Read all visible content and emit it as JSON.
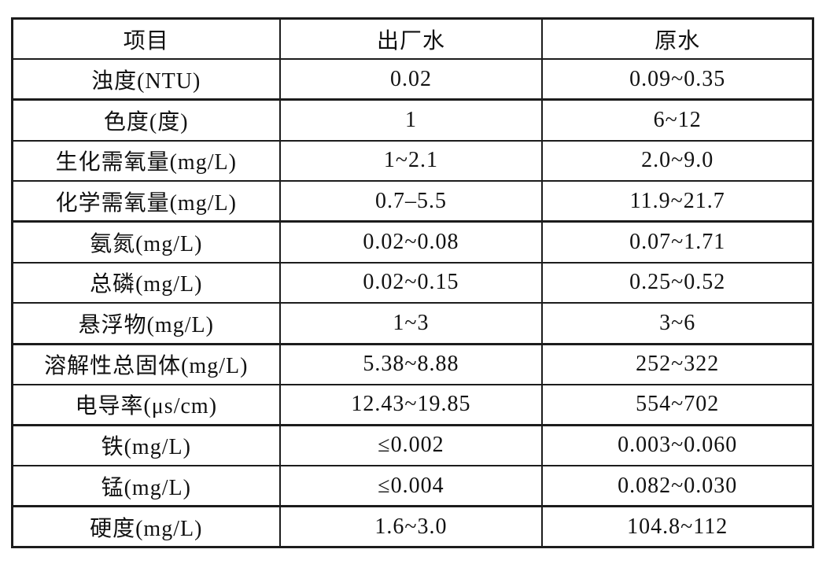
{
  "colors": {
    "background": "#ffffff",
    "border": "#1c1c1c",
    "text": "#111111"
  },
  "table": {
    "headers": [
      "项目",
      "出厂水",
      "原水"
    ],
    "rows": [
      {
        "item": "浊度(NTU)",
        "factory_water": "0.02",
        "raw_water": "0.09~0.35"
      },
      {
        "item": "色度(度)",
        "factory_water": "1",
        "raw_water": "6~12"
      },
      {
        "item": "生化需氧量(mg/L)",
        "factory_water": "1~2.1",
        "raw_water": "2.0~9.0"
      },
      {
        "item": "化学需氧量(mg/L)",
        "factory_water": "0.7–5.5",
        "raw_water": "11.9~21.7"
      },
      {
        "item": "氨氮(mg/L)",
        "factory_water": "0.02~0.08",
        "raw_water": "0.07~1.71"
      },
      {
        "item": "总磷(mg/L)",
        "factory_water": "0.02~0.15",
        "raw_water": "0.25~0.52"
      },
      {
        "item": "悬浮物(mg/L)",
        "factory_water": "1~3",
        "raw_water": "3~6"
      },
      {
        "item": "溶解性总固体(mg/L)",
        "factory_water": "5.38~8.88",
        "raw_water": "252~322"
      },
      {
        "item": "电导率(μs/cm)",
        "factory_water": "12.43~19.85",
        "raw_water": "554~702"
      },
      {
        "item": "铁(mg/L)",
        "factory_water": "≤0.002",
        "raw_water": "0.003~0.060"
      },
      {
        "item": "锰(mg/L)",
        "factory_water": "≤0.004",
        "raw_water": "0.082~0.030"
      },
      {
        "item": "硬度(mg/L)",
        "factory_water": "1.6~3.0",
        "raw_water": "104.8~112"
      }
    ]
  },
  "chart_data": {
    "type": "table",
    "title": "",
    "columns": [
      "项目",
      "出厂水",
      "原水"
    ],
    "rows": [
      [
        "浊度(NTU)",
        "0.02",
        "0.09~0.35"
      ],
      [
        "色度(度)",
        "1",
        "6~12"
      ],
      [
        "生化需氧量(mg/L)",
        "1~2.1",
        "2.0~9.0"
      ],
      [
        "化学需氧量(mg/L)",
        "0.7–5.5",
        "11.9~21.7"
      ],
      [
        "氨氮(mg/L)",
        "0.02~0.08",
        "0.07~1.71"
      ],
      [
        "总磷(mg/L)",
        "0.02~0.15",
        "0.25~0.52"
      ],
      [
        "悬浮物(mg/L)",
        "1~3",
        "3~6"
      ],
      [
        "溶解性总固体(mg/L)",
        "5.38~8.88",
        "252~322"
      ],
      [
        "电导率(μs/cm)",
        "12.43~19.85",
        "554~702"
      ],
      [
        "铁(mg/L)",
        "≤0.002",
        "0.003~0.060"
      ],
      [
        "锰(mg/L)",
        "≤0.004",
        "0.082~0.030"
      ],
      [
        "硬度(mg/L)",
        "1.6~3.0",
        "104.8~112"
      ]
    ]
  }
}
